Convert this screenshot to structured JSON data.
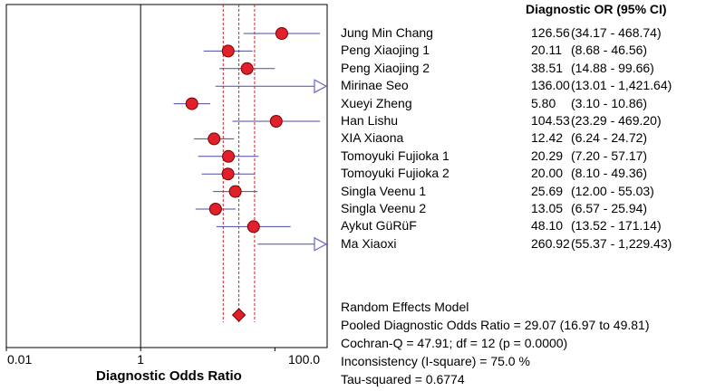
{
  "chart_data": {
    "type": "forest",
    "header": "Diagnostic OR (95% CI)",
    "xlabel": "Diagnostic Odds Ratio",
    "x_scale": "log",
    "x_ticks": [
      {
        "value": 0.01,
        "label": "0.01"
      },
      {
        "value": 1,
        "label": "1"
      },
      {
        "value": 100,
        "label": "100.0"
      }
    ],
    "reference_line": 1,
    "studies": [
      {
        "name": "Jung Min Chang",
        "or": 126.56,
        "or_text": "126.56",
        "lo": 34.17,
        "hi": 468.74,
        "ci_text": "(34.17 - 468.74)"
      },
      {
        "name": "Peng Xiaojing 1",
        "or": 20.11,
        "or_text": "20.11",
        "lo": 8.68,
        "hi": 46.56,
        "ci_text": "(8.68 - 46.56)"
      },
      {
        "name": "Peng Xiaojing 2",
        "or": 38.51,
        "or_text": "38.51",
        "lo": 14.88,
        "hi": 99.66,
        "ci_text": "(14.88 - 99.66)"
      },
      {
        "name": "Mirinae Seo",
        "or": 136.0,
        "or_text": "136.00",
        "lo": 13.01,
        "hi": 1421.64,
        "ci_text": "(13.01 - 1,421.64)"
      },
      {
        "name": "Xueyi Zheng",
        "or": 5.8,
        "or_text": "5.80",
        "lo": 3.1,
        "hi": 10.86,
        "ci_text": "(3.10 - 10.86)"
      },
      {
        "name": "Han Lishu",
        "or": 104.53,
        "or_text": "104.53",
        "lo": 23.29,
        "hi": 469.2,
        "ci_text": "(23.29 - 469.20)"
      },
      {
        "name": "XIA Xiaona",
        "or": 12.42,
        "or_text": "12.42",
        "lo": 6.24,
        "hi": 24.72,
        "ci_text": "(6.24 - 24.72)"
      },
      {
        "name": "Tomoyuki Fujioka 1",
        "or": 20.29,
        "or_text": "20.29",
        "lo": 7.2,
        "hi": 57.17,
        "ci_text": "(7.20 - 57.17)"
      },
      {
        "name": "Tomoyuki Fujioka 2",
        "or": 20.0,
        "or_text": "20.00",
        "lo": 8.1,
        "hi": 49.36,
        "ci_text": "(8.10 - 49.36)"
      },
      {
        "name": "Singla Veenu 1",
        "or": 25.69,
        "or_text": "25.69",
        "lo": 12.0,
        "hi": 55.03,
        "ci_text": "(12.00 - 55.03)"
      },
      {
        "name": "Singla Veenu 2",
        "or": 13.05,
        "or_text": "13.05",
        "lo": 6.57,
        "hi": 25.94,
        "ci_text": "(6.57 - 25.94)"
      },
      {
        "name": "Aykut GüRüF",
        "or": 48.1,
        "or_text": "48.10",
        "lo": 13.52,
        "hi": 171.14,
        "ci_text": "(13.52 - 171.14)"
      },
      {
        "name": "Ma Xiaoxi",
        "or": 260.92,
        "or_text": "260.92",
        "lo": 55.37,
        "hi": 1229.43,
        "ci_text": "(55.37 - 1,229.43)"
      }
    ],
    "pooled": {
      "or": 29.07,
      "lo": 16.97,
      "hi": 49.81
    },
    "summary_lines": [
      "Random Effects Model",
      "Pooled Diagnostic Odds Ratio = 29.07 (16.97 to 49.81)",
      "Cochran-Q = 47.91; df =  12 (p = 0.0000)",
      "Inconsistency (I-square) = 75.0 %",
      "Tau-squared = 0.6774"
    ],
    "colors": {
      "marker": "#e0202a",
      "marker_stroke": "#7a0000",
      "ci_line": "#4a4aa8",
      "arrow": "#6a6ac8",
      "pooled_band": "#d42020",
      "axis": "#000000"
    }
  }
}
